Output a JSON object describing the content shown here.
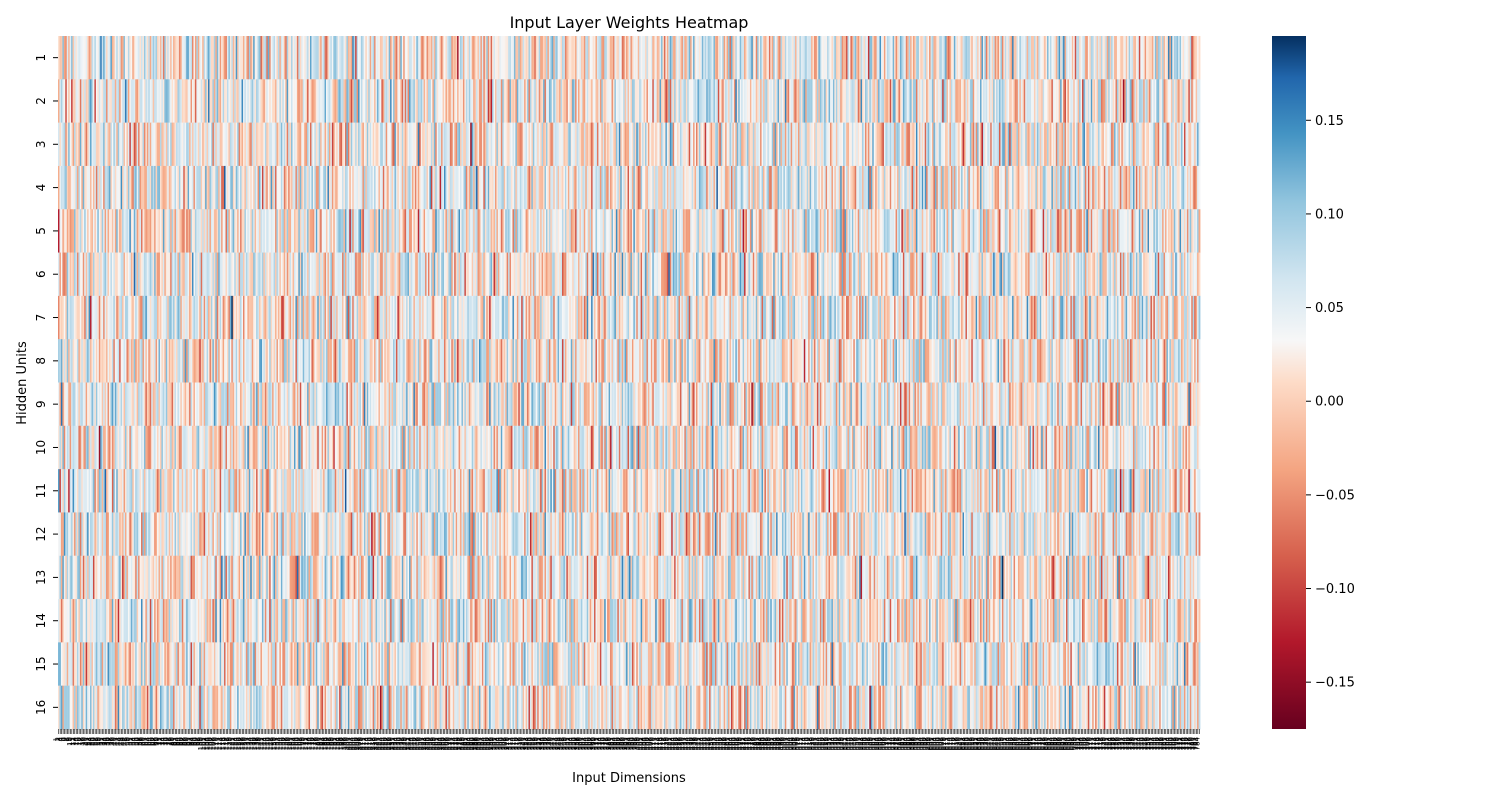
{
  "chart_data": {
    "type": "heatmap",
    "title": "Input Layer Weights Heatmap",
    "xlabel": "Input Dimensions",
    "ylabel": "Hidden Units",
    "rows": [
      "1",
      "2",
      "3",
      "4",
      "5",
      "6",
      "7",
      "8",
      "9",
      "10",
      "11",
      "12",
      "13",
      "14",
      "15",
      "16"
    ],
    "n_columns": 784,
    "value_range": [
      -0.175,
      0.195
    ],
    "colormap": "RdBu",
    "colors": {
      "negative_end": "#67001f",
      "neutral": "#f7f7f7",
      "positive_end": "#053061"
    },
    "colorbar": {
      "ticks": [
        0.15,
        0.1,
        0.05,
        0.0,
        -0.05,
        -0.1,
        -0.15
      ],
      "tick_labels": [
        "0.15",
        "0.10",
        "0.05",
        "0.00",
        "−0.05",
        "−0.10",
        "−0.15"
      ]
    }
  }
}
